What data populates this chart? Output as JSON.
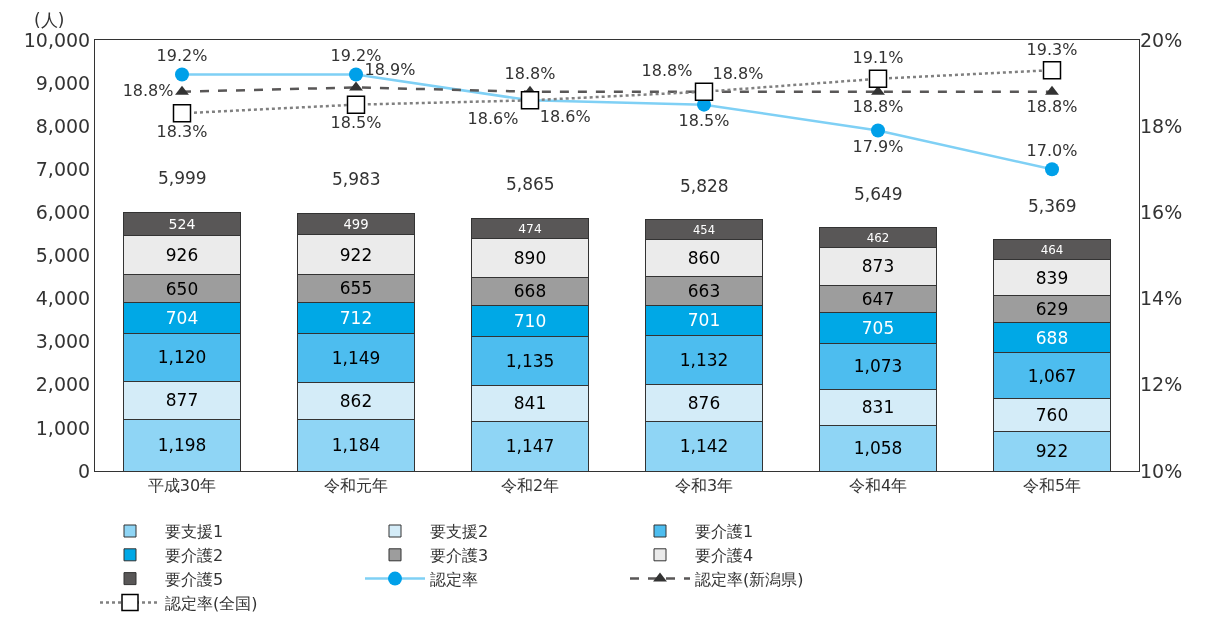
{
  "chart_data": {
    "type": "bar",
    "stacked": true,
    "ylabel": "(人)",
    "categories": [
      "平成30年",
      "令和元年",
      "令和2年",
      "令和3年",
      "令和4年",
      "令和5年"
    ],
    "series": [
      {
        "name": "要支援1",
        "color": "#8fd5f5",
        "values": [
          1198,
          1184,
          1147,
          1142,
          1058,
          922
        ],
        "value_labels": [
          "1,198",
          "1,184",
          "1,147",
          "1,142",
          "1,058",
          "922"
        ]
      },
      {
        "name": "要支援2",
        "color": "#d4ecf8",
        "values": [
          877,
          862,
          841,
          876,
          831,
          760
        ],
        "value_labels": [
          "877",
          "862",
          "841",
          "876",
          "831",
          "760"
        ]
      },
      {
        "name": "要介護1",
        "color": "#4dbdef",
        "values": [
          1120,
          1149,
          1135,
          1132,
          1073,
          1067
        ],
        "value_labels": [
          "1,120",
          "1,149",
          "1,135",
          "1,132",
          "1,073",
          "1,067"
        ]
      },
      {
        "name": "要介護2",
        "color": "#00a8e6",
        "values": [
          704,
          712,
          710,
          701,
          705,
          688
        ],
        "value_labels": [
          "704",
          "712",
          "710",
          "701",
          "705",
          "688"
        ]
      },
      {
        "name": "要介護3",
        "color": "#9d9d9d",
        "values": [
          650,
          655,
          668,
          663,
          647,
          629
        ],
        "value_labels": [
          "650",
          "655",
          "668",
          "663",
          "647",
          "629"
        ]
      },
      {
        "name": "要介護4",
        "color": "#ebebeb",
        "values": [
          926,
          922,
          890,
          860,
          873,
          839
        ],
        "value_labels": [
          "926",
          "922",
          "890",
          "860",
          "873",
          "839"
        ]
      },
      {
        "name": "要介護5",
        "color": "#595757",
        "values": [
          524,
          499,
          474,
          454,
          462,
          464
        ],
        "value_labels": [
          "524",
          "499",
          "474",
          "454",
          "462",
          "464"
        ]
      },
      {
        "name": "認定率",
        "type": "line",
        "axis": "y2",
        "color": "#00a0e9",
        "marker": "circle",
        "line_style": "solid",
        "values": [
          19.2,
          19.2,
          18.6,
          18.5,
          17.9,
          17.0
        ],
        "value_labels": [
          "19.2%",
          "19.2%",
          "18.6%",
          "18.5%",
          "17.9%",
          "17.0%"
        ]
      },
      {
        "name": "認定率(新潟県)",
        "type": "line",
        "axis": "y2",
        "color": "#595757",
        "marker": "triangle",
        "line_style": "dashed",
        "values": [
          18.8,
          18.9,
          18.8,
          18.8,
          18.8,
          18.8
        ],
        "value_labels": [
          "18.8%",
          "18.9%",
          "18.8%",
          "18.8%",
          "18.8%",
          "18.8%"
        ]
      },
      {
        "name": "認定率(全国)",
        "type": "line",
        "axis": "y2",
        "color": "#808080",
        "marker": "square",
        "line_style": "dotted",
        "values": [
          18.3,
          18.5,
          18.6,
          18.8,
          19.1,
          19.3
        ],
        "value_labels": [
          "18.3%",
          "18.5%",
          "18.6%",
          "18.8%",
          "19.1%",
          "19.3%"
        ]
      }
    ],
    "totals": [
      "5,999",
      "5,983",
      "5,865",
      "5,828",
      "5,649",
      "5,369"
    ],
    "ylim": [
      0,
      10000
    ],
    "yticks": [
      0,
      {
        "value": 1000,
        "label": "1,000"
      },
      {
        "value": 2000,
        "label": "2,000"
      },
      {
        "value": 3000,
        "label": "3,000"
      },
      {
        "value": 4000,
        "label": "4,000"
      },
      {
        "value": 5000,
        "label": "5,000"
      },
      {
        "value": 6000,
        "label": "6,000"
      },
      {
        "value": 7000,
        "label": "7,000"
      },
      {
        "value": 8000,
        "label": "8,000"
      },
      {
        "value": 9000,
        "label": "9,000"
      },
      {
        "value": 10000,
        "label": "10,000"
      }
    ],
    "y2lim": [
      10,
      20
    ],
    "y2ticks": [
      {
        "value": 10,
        "label": "10%"
      },
      {
        "value": 12,
        "label": "12%"
      },
      {
        "value": 14,
        "label": "14%"
      },
      {
        "value": 16,
        "label": "16%"
      },
      {
        "value": 18,
        "label": "18%"
      },
      {
        "value": 20,
        "label": "20%"
      }
    ],
    "legend": "bottom"
  }
}
